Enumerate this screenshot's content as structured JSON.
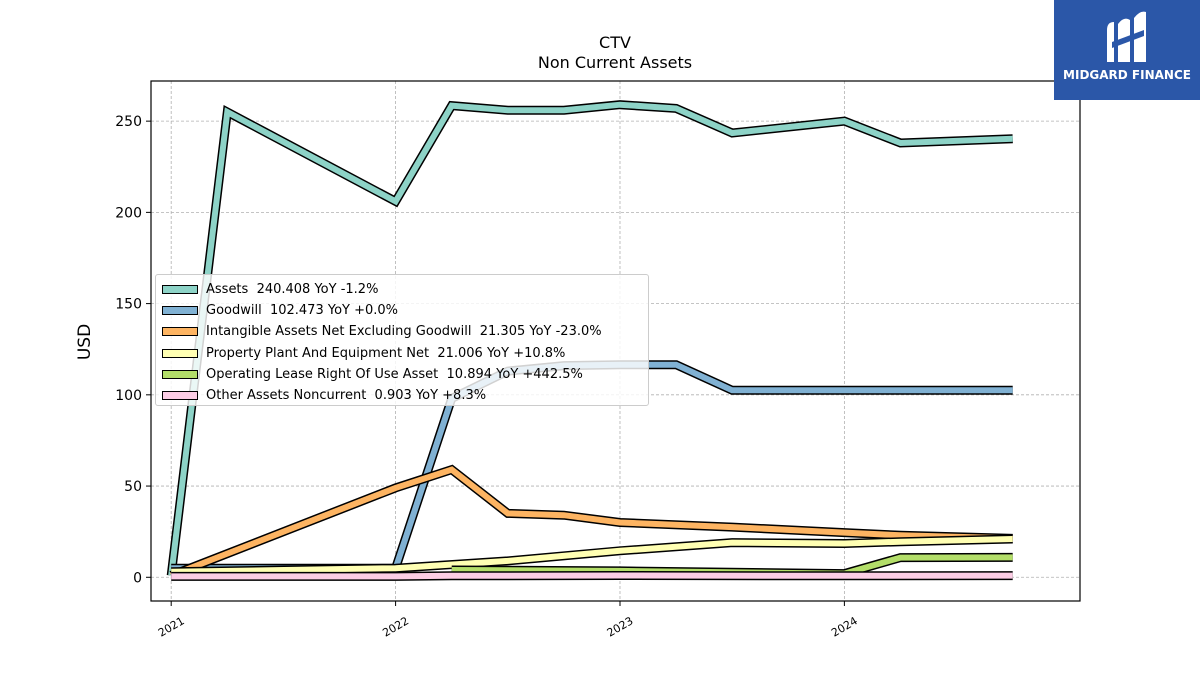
{
  "chart_data": {
    "type": "line",
    "title": "CTV",
    "subtitle": "Non Current  Assets",
    "ylabel": "USD",
    "xlabel": "",
    "ylim": [
      -13,
      272
    ],
    "xlim": [
      2020.91,
      2025.05
    ],
    "yticks": [
      0,
      50,
      100,
      150,
      200,
      250
    ],
    "xticks": [
      {
        "value": 2021,
        "label": "2021"
      },
      {
        "value": 2022,
        "label": "2022"
      },
      {
        "value": 2023,
        "label": "2023"
      },
      {
        "value": 2024,
        "label": "2024"
      }
    ],
    "grid": true,
    "legend_position": "center-left",
    "series": [
      {
        "name": "Assets",
        "legend": "Assets  240.408 YoY -1.2%",
        "color": "#8dd3c7",
        "points": [
          [
            2021.0,
            1.0
          ],
          [
            2021.25,
            255.0
          ],
          [
            2022.0,
            206.0
          ],
          [
            2022.25,
            258.5
          ],
          [
            2022.5,
            256.0
          ],
          [
            2022.75,
            256.0
          ],
          [
            2023.0,
            259.0
          ],
          [
            2023.25,
            257.0
          ],
          [
            2023.5,
            243.5
          ],
          [
            2024.0,
            250.0
          ],
          [
            2024.25,
            238.0
          ],
          [
            2024.75,
            240.4
          ]
        ]
      },
      {
        "name": "Goodwill",
        "legend": "Goodwill  102.473 YoY +0.0%",
        "color": "#80b1d3",
        "points": [
          [
            2021.0,
            5.0
          ],
          [
            2022.0,
            5.0
          ],
          [
            2022.25,
            98.0
          ],
          [
            2022.5,
            113.0
          ],
          [
            2022.75,
            116.0
          ],
          [
            2023.0,
            116.5
          ],
          [
            2023.25,
            116.5
          ],
          [
            2023.5,
            102.5
          ],
          [
            2024.0,
            102.5
          ],
          [
            2024.25,
            102.5
          ],
          [
            2024.75,
            102.5
          ]
        ]
      },
      {
        "name": "Intangible Assets Net Excluding Goodwill",
        "legend": "Intangible Assets Net Excluding Goodwill  21.305 YoY -23.0%",
        "color": "#fdb462",
        "points": [
          [
            2021.0,
            1.0
          ],
          [
            2022.0,
            49.0
          ],
          [
            2022.25,
            59.0
          ],
          [
            2022.5,
            35.0
          ],
          [
            2022.75,
            34.0
          ],
          [
            2023.0,
            30.0
          ],
          [
            2023.5,
            27.5
          ],
          [
            2024.0,
            24.5
          ],
          [
            2024.25,
            23.0
          ],
          [
            2024.75,
            21.3
          ]
        ]
      },
      {
        "name": "Property Plant And Equipment Net",
        "legend": "Property Plant And Equipment Net  21.006 YoY +10.8%",
        "color": "#ffffb3",
        "points": [
          [
            2021.0,
            3.0
          ],
          [
            2022.0,
            5.0
          ],
          [
            2022.5,
            9.0
          ],
          [
            2023.0,
            14.5
          ],
          [
            2023.5,
            19.0
          ],
          [
            2024.0,
            18.5
          ],
          [
            2024.25,
            19.5
          ],
          [
            2024.75,
            21.0
          ]
        ]
      },
      {
        "name": "Operating Lease Right Of Use Asset",
        "legend": "Operating Lease Right Of Use Asset  10.894 YoY +442.5%",
        "color": "#b3de69",
        "points": [
          [
            2022.25,
            4.0
          ],
          [
            2023.0,
            3.5
          ],
          [
            2024.0,
            2.0
          ],
          [
            2024.25,
            10.8
          ],
          [
            2024.75,
            10.9
          ]
        ]
      },
      {
        "name": "Other Assets Noncurrent",
        "legend": "Other Assets Noncurrent  0.903 YoY +8.3%",
        "color": "#fccde5",
        "points": [
          [
            2021.0,
            0.5
          ],
          [
            2022.0,
            0.5
          ],
          [
            2022.25,
            0.8
          ],
          [
            2023.0,
            1.0
          ],
          [
            2024.0,
            0.8
          ],
          [
            2024.75,
            0.9
          ]
        ]
      }
    ]
  },
  "logo": {
    "text": "MIDGARD FINANCE",
    "color": "#2b57a8"
  }
}
